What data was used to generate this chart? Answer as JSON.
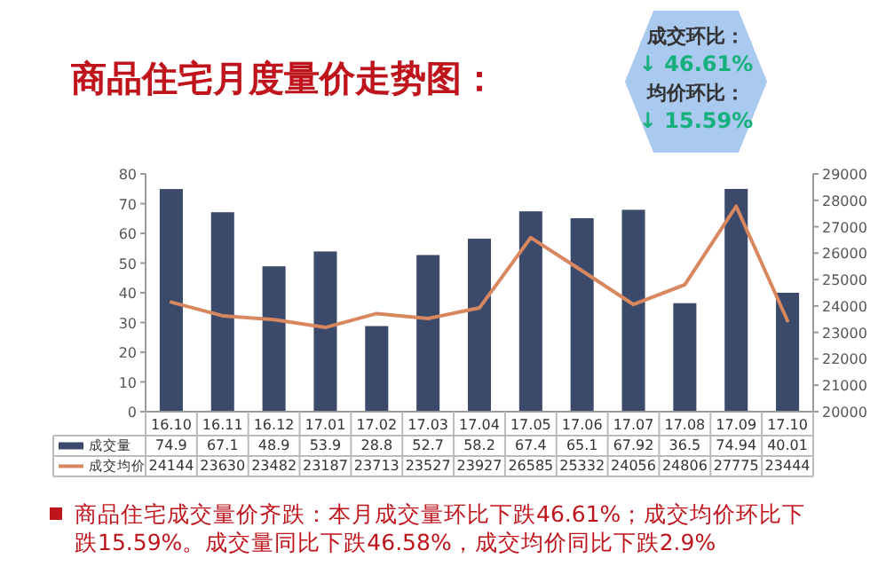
{
  "chart_data": {
    "type": "bar",
    "title": "商品住宅月度量价走势图：",
    "categories": [
      "16.10",
      "16.11",
      "16.12",
      "17.01",
      "17.02",
      "17.03",
      "17.04",
      "17.05",
      "17.06",
      "17.07",
      "17.08",
      "17.09",
      "17.10"
    ],
    "series": [
      {
        "name": "成交量",
        "color": "#3b4a6b",
        "values": [
          74.9,
          67.1,
          48.9,
          53.9,
          28.8,
          52.7,
          58.2,
          67.4,
          65.1,
          67.92,
          36.5,
          74.94,
          40.01
        ]
      },
      {
        "name": "成交均价",
        "type": "line",
        "axis": "y2",
        "color": "#d9875f",
        "values": [
          24144,
          23630,
          23482,
          23187,
          23713,
          23527,
          23927,
          26585,
          25332,
          24056,
          24806,
          27775,
          23444
        ]
      }
    ],
    "ylim": [
      0,
      80
    ],
    "yticks": [
      0,
      10,
      20,
      30,
      40,
      50,
      60,
      70,
      80
    ],
    "y2lim": [
      20000,
      29000
    ],
    "y2ticks": [
      20000,
      21000,
      22000,
      23000,
      24000,
      25000,
      26000,
      27000,
      28000,
      29000
    ],
    "data_labels": true,
    "legend": "bottom",
    "grid": false,
    "annotations": [
      "成交环比：",
      "↓ 46.61%",
      "均价环比：",
      "↓ 15.59%",
      "商品住宅成交量价齐跌：本月成交量环比下跌46.61%；成交均价环比下跌15.59%。成交量同比下跌46.58%，成交均价同比下跌2.9%"
    ]
  }
}
